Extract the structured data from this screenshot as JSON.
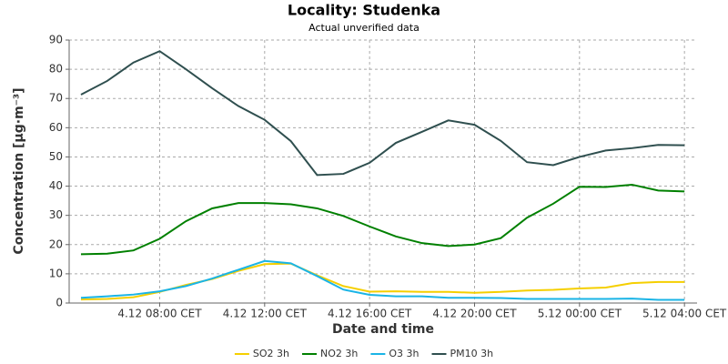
{
  "chart_data": {
    "type": "line",
    "title": "Locality: Studenka",
    "subtitle": "Actual unverified data",
    "x_label": "Date and time",
    "y_label": "Concentration [µg·m⁻³]",
    "x": [
      5,
      6,
      7,
      8,
      9,
      10,
      11,
      12,
      13,
      14,
      15,
      16,
      17,
      18,
      19,
      20,
      21,
      22,
      23,
      24,
      25,
      26,
      27,
      28
    ],
    "xlim": [
      4.55,
      28.48
    ],
    "xticks": [
      {
        "value": 8,
        "label": "4.12 08:00 CET"
      },
      {
        "value": 12,
        "label": "4.12 12:00 CET"
      },
      {
        "value": 16,
        "label": "4.12 16:00 CET"
      },
      {
        "value": 20,
        "label": "4.12 20:00 CET"
      },
      {
        "value": 24,
        "label": "5.12 00:00 CET"
      },
      {
        "value": 28,
        "label": "5.12 04:00 CET"
      }
    ],
    "ylim": [
      0,
      90
    ],
    "yticks": [
      0,
      10,
      20,
      30,
      40,
      50,
      60,
      70,
      80,
      90
    ],
    "grid": true,
    "legend": "bottom",
    "series": [
      {
        "name": "SO2 3h",
        "color": "#f5cf00",
        "values": [
          1.2,
          1.4,
          2,
          3.8,
          6.2,
          8.2,
          11,
          13.3,
          13.5,
          9.5,
          5.8,
          3.9,
          4,
          3.8,
          3.8,
          3.5,
          3.8,
          4.3,
          4.5,
          5,
          5.3,
          6.8,
          7.2,
          7.2
        ]
      },
      {
        "name": "NO2 3h",
        "color": "#008000",
        "values": [
          16.7,
          16.9,
          18,
          22,
          28,
          32.4,
          34.2,
          34.2,
          33.8,
          32.4,
          29.8,
          26.2,
          22.8,
          20.5,
          19.5,
          20,
          22.2,
          29.2,
          34,
          39.8,
          39.7,
          40.5,
          38.5,
          38.2
        ]
      },
      {
        "name": "O3 3h",
        "color": "#1ab4e6",
        "values": [
          1.8,
          2.3,
          2.9,
          4,
          5.8,
          8.4,
          11.4,
          14.4,
          13.6,
          9.2,
          4.6,
          2.8,
          2.3,
          2.3,
          1.8,
          1.8,
          1.7,
          1.4,
          1.4,
          1.4,
          1.4,
          1.5,
          1.1,
          1.1
        ]
      },
      {
        "name": "PM10 3h",
        "color": "#2f4f4f",
        "values": [
          71.3,
          76,
          82.3,
          86.2,
          80,
          73.5,
          67.4,
          62.7,
          55.4,
          43.8,
          44.2,
          48,
          54.8,
          58.6,
          62.5,
          61,
          55.5,
          48.2,
          47.2,
          50,
          52.2,
          53,
          54.1,
          54
        ]
      }
    ]
  }
}
